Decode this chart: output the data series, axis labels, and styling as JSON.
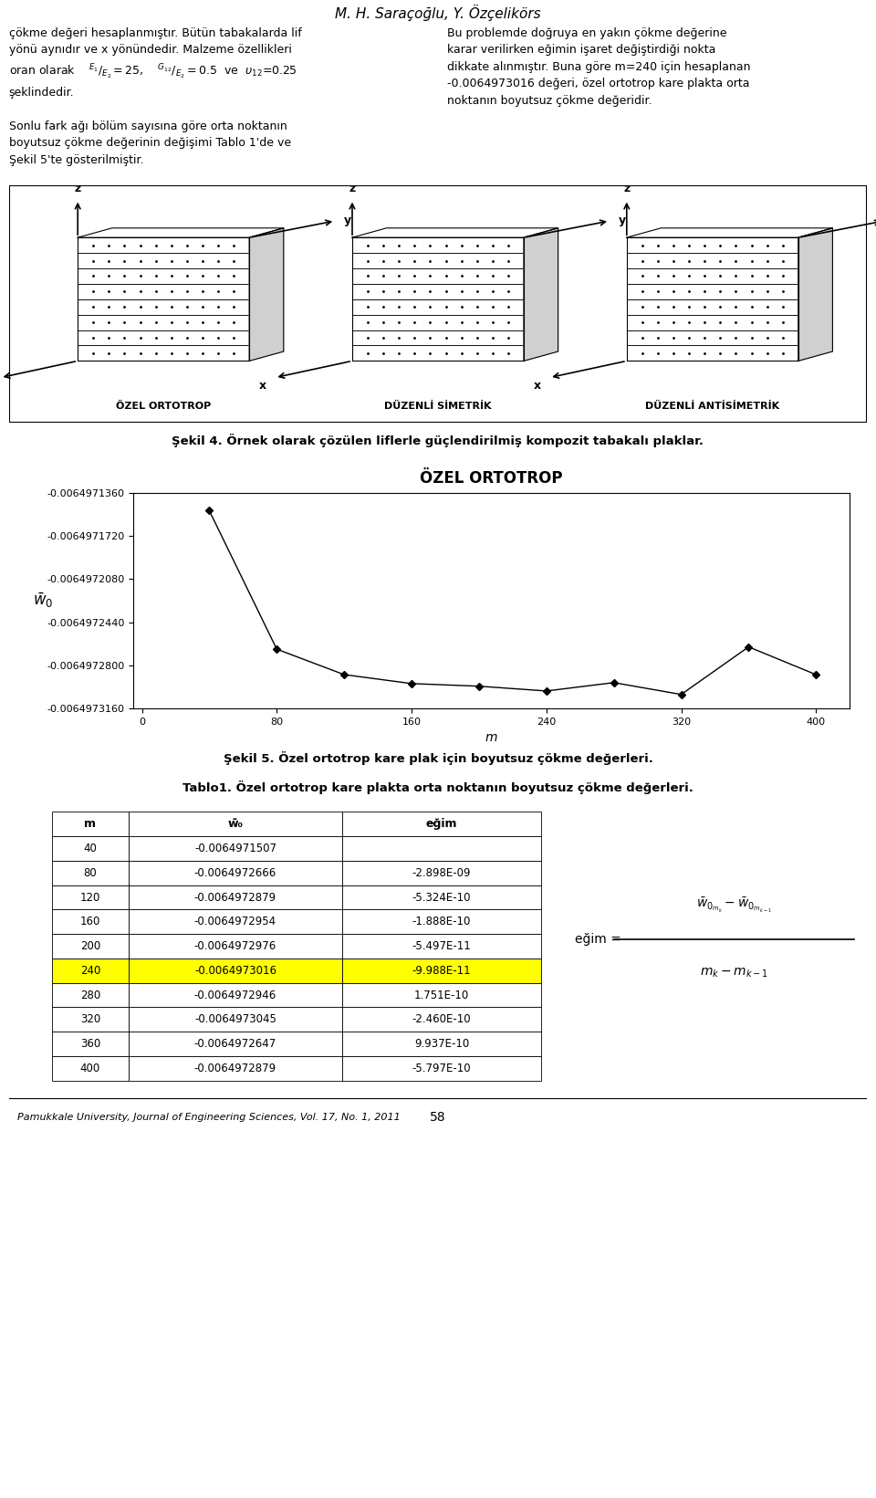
{
  "title": "M. H. Saraçoğlu, Y. Özçelikörs",
  "plot_title": "ÖZEL ORTOTROP",
  "x_data": [
    40,
    80,
    120,
    160,
    200,
    240,
    280,
    320,
    360,
    400
  ],
  "y_data": [
    -0.0064971507,
    -0.0064972666,
    -0.0064972879,
    -0.0064972954,
    -0.0064972976,
    -0.0064973016,
    -0.0064972946,
    -0.0064973045,
    -0.0064972647,
    -0.0064972879
  ],
  "xlabel": "m",
  "ylim_min": -0.006497316,
  "ylim_max": -0.006497136,
  "yticks": [
    -0.006497316,
    -0.00649728,
    -0.006497244,
    -0.006497208,
    -0.006497172,
    -0.006497136
  ],
  "xticks": [
    0,
    80,
    160,
    240,
    320,
    400
  ],
  "sekil4_caption": "Şekil 4. Örnek olarak çözülen liflerle güçlendirilmiş kompozit tabakalı plaklar.",
  "sekil5_caption": "Şekil 5. Özel ortotrop kare plak için boyutsuz çökme değerleri.",
  "table_title": "Tablo1. Özel ortotrop kare plakta orta noktanın boyutsuz çökme değerleri.",
  "table_headers": [
    "m",
    "w̄₀",
    "eğim"
  ],
  "table_data": [
    [
      "40",
      "-0.0064971507",
      ""
    ],
    [
      "80",
      "-0.0064972666",
      "-2.898E-09"
    ],
    [
      "120",
      "-0.0064972879",
      "-5.324E-10"
    ],
    [
      "160",
      "-0.0064972954",
      "-1.888E-10"
    ],
    [
      "200",
      "-0.0064972976",
      "-5.497E-11"
    ],
    [
      "240",
      "-0.0064973016",
      "-9.988E-11"
    ],
    [
      "280",
      "-0.0064972946",
      "1.751E-10"
    ],
    [
      "320",
      "-0.0064973045",
      "-2.460E-10"
    ],
    [
      "360",
      "-0.0064972647",
      "9.937E-10"
    ],
    [
      "400",
      "-0.0064972879",
      "-5.797E-10"
    ]
  ],
  "highlighted_row": 5,
  "highlight_color": "#FFFF00",
  "footer": "Pamukkale University, Journal of Engineering Sciences, Vol. 17, No. 1, 2011",
  "page_num": "58",
  "background_color": "#ffffff"
}
